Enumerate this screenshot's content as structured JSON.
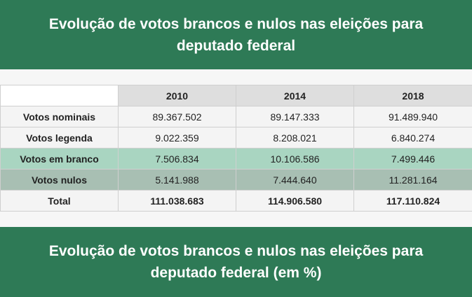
{
  "title_top": "Evolução de votos brancos e nulos nas eleições para deputado federal",
  "title_bottom": "Evolução de votos brancos e nulos nas eleições para deputado federal (em %)",
  "table": {
    "headers": [
      "",
      "2010",
      "2014",
      "2018"
    ],
    "rows": [
      {
        "label": "Votos nominais",
        "values": [
          "89.367.502",
          "89.147.333",
          "91.489.940"
        ]
      },
      {
        "label": "Votos legenda",
        "values": [
          "9.022.359",
          "8.208.021",
          "6.840.274"
        ]
      },
      {
        "label": "Votos em branco",
        "values": [
          "7.506.834",
          "10.106.586",
          "7.499.446"
        ]
      },
      {
        "label": "Votos nulos",
        "values": [
          "5.141.988",
          "7.444.640",
          "11.281.164"
        ]
      },
      {
        "label": "Total",
        "values": [
          "111.038.683",
          "114.906.580",
          "117.110.824"
        ]
      }
    ]
  },
  "colors": {
    "banner": "#2e7a56",
    "branco_row": "#a9d5c1",
    "nulos_row": "#a8bfb3"
  }
}
